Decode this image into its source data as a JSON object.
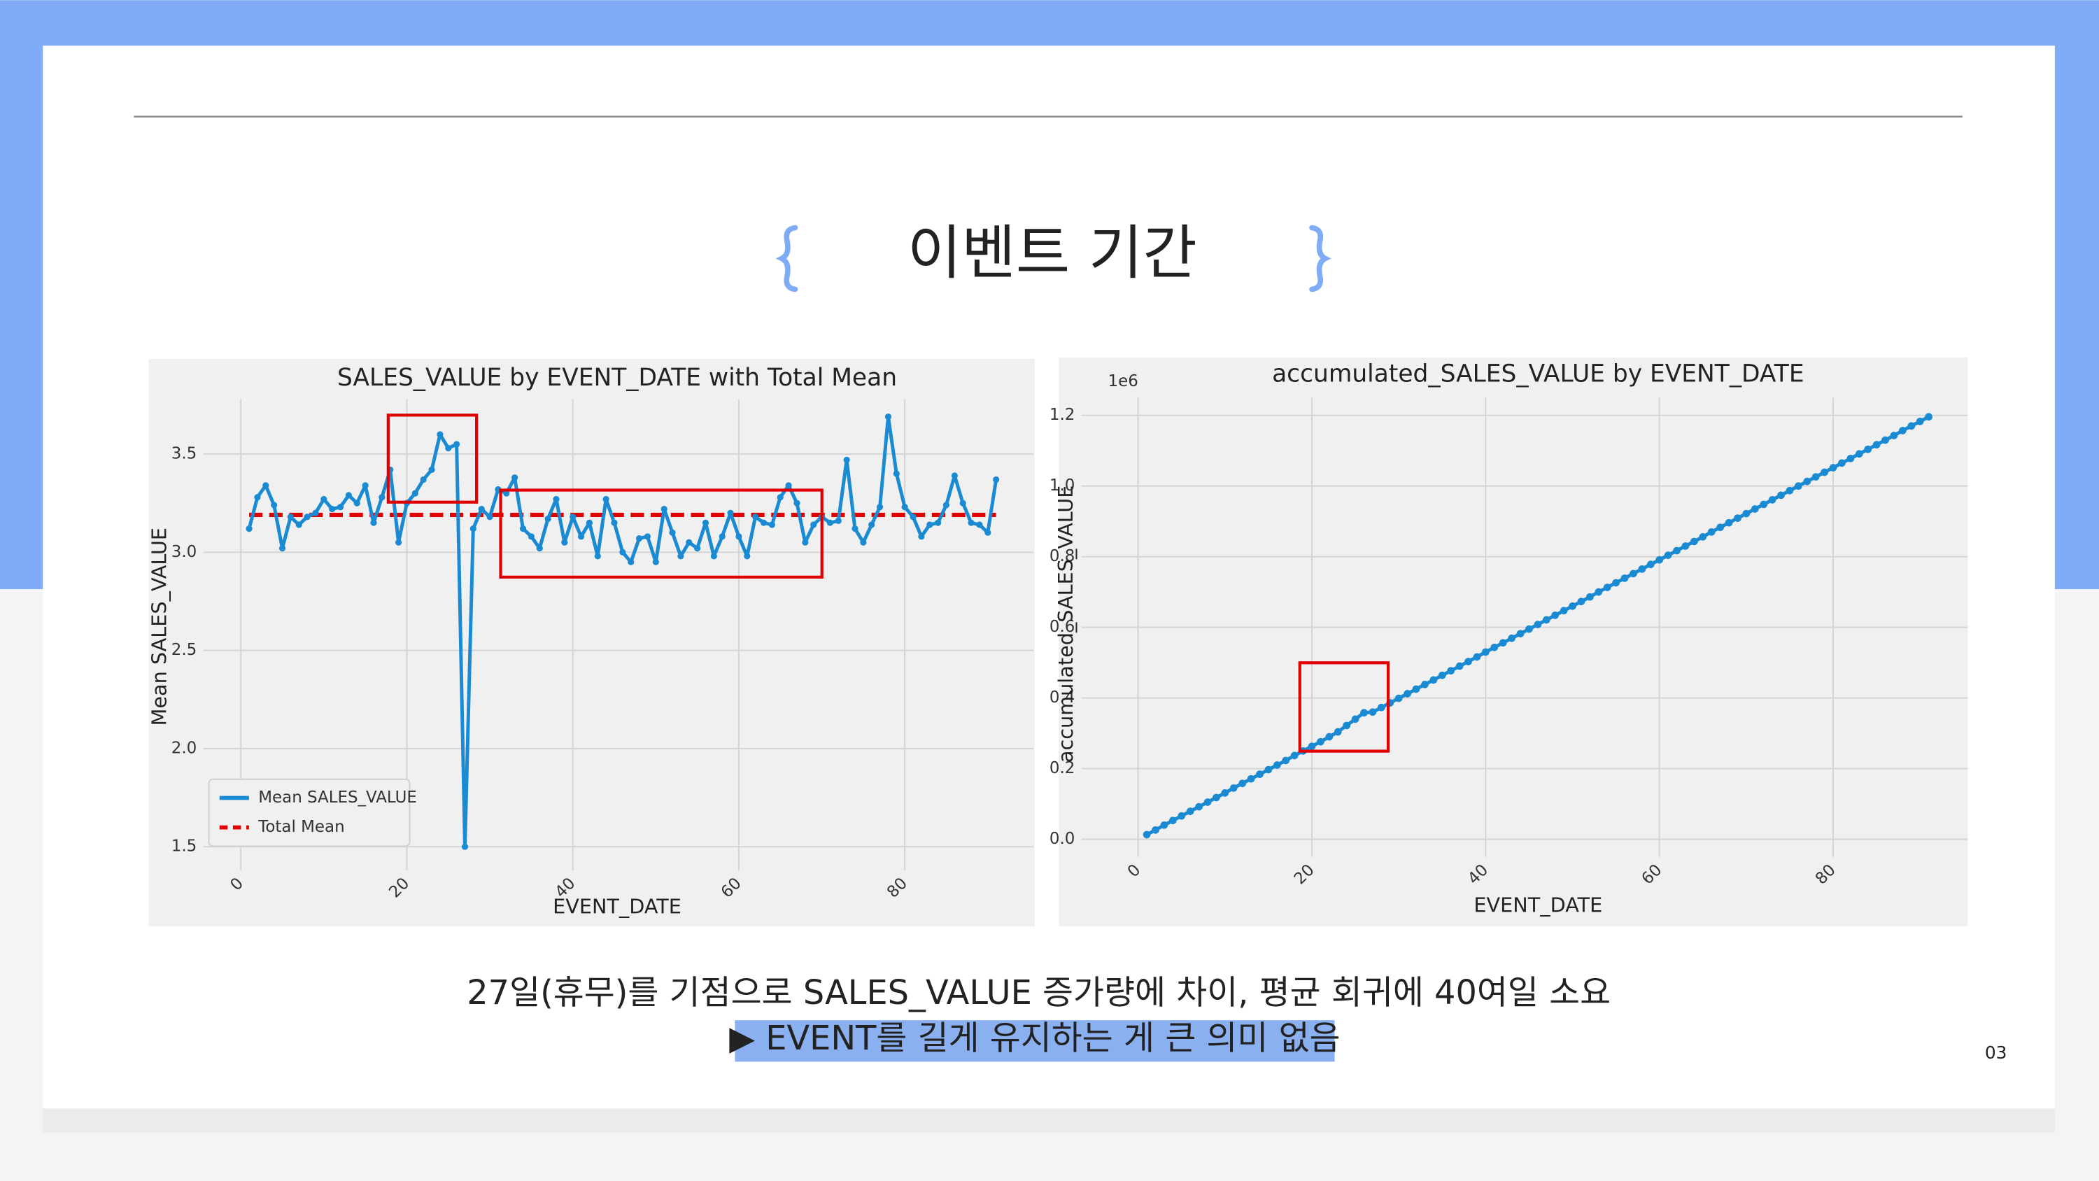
{
  "title": "이벤트 기간",
  "caption": [
    "27일(휴무)를 기점으로 SALES_VALUE 증가량에 차이, 평균 회귀에 40여일 소요",
    "▶ EVENT를 길게 유지하는 게 큰 의미 없음"
  ],
  "page_number": "03",
  "chart_data": [
    {
      "type": "line",
      "title": "SALES_VALUE by EVENT_DATE with Total Mean",
      "x_label": "EVENT_DATE",
      "y_label": "Mean SALES_VALUE",
      "x": [
        1,
        2,
        3,
        4,
        5,
        6,
        7,
        8,
        9,
        10,
        11,
        12,
        13,
        14,
        15,
        16,
        17,
        18,
        19,
        20,
        21,
        22,
        23,
        24,
        25,
        26,
        27,
        28,
        29,
        30,
        31,
        32,
        33,
        34,
        35,
        36,
        37,
        38,
        39,
        40,
        41,
        42,
        43,
        44,
        45,
        46,
        47,
        48,
        49,
        50,
        51,
        52,
        53,
        54,
        55,
        56,
        57,
        58,
        59,
        60,
        61,
        62,
        63,
        64,
        65,
        66,
        67,
        68,
        69,
        70,
        71,
        72,
        73,
        74,
        75,
        76,
        77,
        78,
        79,
        80,
        81,
        82,
        83,
        84,
        85,
        86,
        87,
        88,
        89,
        90,
        91
      ],
      "series": [
        {
          "name": "Mean SALES_VALUE",
          "color": "#1a8bd3",
          "values": [
            3.12,
            3.28,
            3.34,
            3.24,
            3.02,
            3.18,
            3.14,
            3.18,
            3.2,
            3.27,
            3.22,
            3.23,
            3.29,
            3.25,
            3.34,
            3.15,
            3.28,
            3.42,
            3.05,
            3.25,
            3.3,
            3.37,
            3.42,
            3.6,
            3.53,
            3.55,
            1.5,
            3.12,
            3.22,
            3.18,
            3.32,
            3.3,
            3.38,
            3.12,
            3.08,
            3.02,
            3.17,
            3.27,
            3.05,
            3.18,
            3.08,
            3.15,
            2.98,
            3.27,
            3.15,
            3.0,
            2.95,
            3.07,
            3.08,
            2.95,
            3.22,
            3.1,
            2.98,
            3.05,
            3.02,
            3.15,
            2.98,
            3.08,
            3.2,
            3.08,
            2.98,
            3.18,
            3.15,
            3.14,
            3.28,
            3.34,
            3.25,
            3.05,
            3.14,
            3.18,
            3.15,
            3.16,
            3.47,
            3.12,
            3.05,
            3.14,
            3.23,
            3.69,
            3.4,
            3.23,
            3.18,
            3.08,
            3.14,
            3.15,
            3.24,
            3.39,
            3.25,
            3.15,
            3.14,
            3.1,
            3.37
          ]
        }
      ],
      "reference_lines": [
        {
          "name": "Total Mean",
          "value": 3.19,
          "color": "#e00000",
          "style": "dashed"
        }
      ],
      "xlim": [
        -4.5,
        95.5
      ],
      "ylim": [
        1.38,
        3.78
      ],
      "xticks": [
        0,
        20,
        40,
        60,
        80
      ],
      "yticks": [
        1.5,
        {
          "value": 2,
          "label": "2.0"
        },
        2.5,
        {
          "value": 3,
          "label": "3.0"
        },
        3.5
      ],
      "grid": true,
      "legend": "lower left"
    },
    {
      "type": "line",
      "title": "accumulated_SALES_VALUE by EVENT_DATE",
      "x_label": "EVENT_DATE",
      "y_label": "accumulated_SALES_VALUE",
      "y_offset_label": "1e6",
      "x": [
        1,
        2,
        3,
        4,
        5,
        6,
        7,
        8,
        9,
        10,
        11,
        12,
        13,
        14,
        15,
        16,
        17,
        18,
        19,
        20,
        21,
        22,
        23,
        24,
        25,
        26,
        27,
        28,
        29,
        30,
        31,
        32,
        33,
        34,
        35,
        36,
        37,
        38,
        39,
        40,
        41,
        42,
        43,
        44,
        45,
        46,
        47,
        48,
        49,
        50,
        51,
        52,
        53,
        54,
        55,
        56,
        57,
        58,
        59,
        60,
        61,
        62,
        63,
        64,
        65,
        66,
        67,
        68,
        69,
        70,
        71,
        72,
        73,
        74,
        75,
        76,
        77,
        78,
        79,
        80,
        81,
        82,
        83,
        84,
        85,
        86,
        87,
        88,
        89,
        90,
        91
      ],
      "series": [
        {
          "name": "accumulated_SALES_VALUE",
          "color": "#1a8bd3",
          "values": [
            0.013,
            0.026,
            0.04,
            0.053,
            0.066,
            0.079,
            0.092,
            0.105,
            0.118,
            0.131,
            0.145,
            0.158,
            0.171,
            0.184,
            0.197,
            0.21,
            0.223,
            0.237,
            0.25,
            0.263,
            0.276,
            0.29,
            0.304,
            0.322,
            0.34,
            0.358,
            0.36,
            0.373,
            0.386,
            0.399,
            0.412,
            0.425,
            0.438,
            0.451,
            0.464,
            0.477,
            0.49,
            0.503,
            0.516,
            0.53,
            0.543,
            0.556,
            0.569,
            0.582,
            0.595,
            0.608,
            0.621,
            0.634,
            0.647,
            0.66,
            0.673,
            0.686,
            0.7,
            0.713,
            0.726,
            0.739,
            0.752,
            0.765,
            0.778,
            0.791,
            0.804,
            0.817,
            0.83,
            0.843,
            0.856,
            0.87,
            0.883,
            0.896,
            0.909,
            0.922,
            0.935,
            0.948,
            0.961,
            0.974,
            0.987,
            1.0,
            1.013,
            1.026,
            1.039,
            1.052,
            1.065,
            1.078,
            1.091,
            1.104,
            1.117,
            1.13,
            1.143,
            1.157,
            1.17,
            1.183,
            1.196
          ]
        }
      ],
      "xlim": [
        -6.5,
        95.5
      ],
      "ylim": [
        -0.05,
        1.25
      ],
      "xticks": [
        0,
        20,
        40,
        60,
        80
      ],
      "yticks": [
        {
          "value": 0,
          "label": "0.0"
        },
        0.2,
        0.4,
        0.6,
        0.8,
        {
          "value": 1,
          "label": "1.0"
        },
        1.2
      ],
      "grid": true
    }
  ]
}
